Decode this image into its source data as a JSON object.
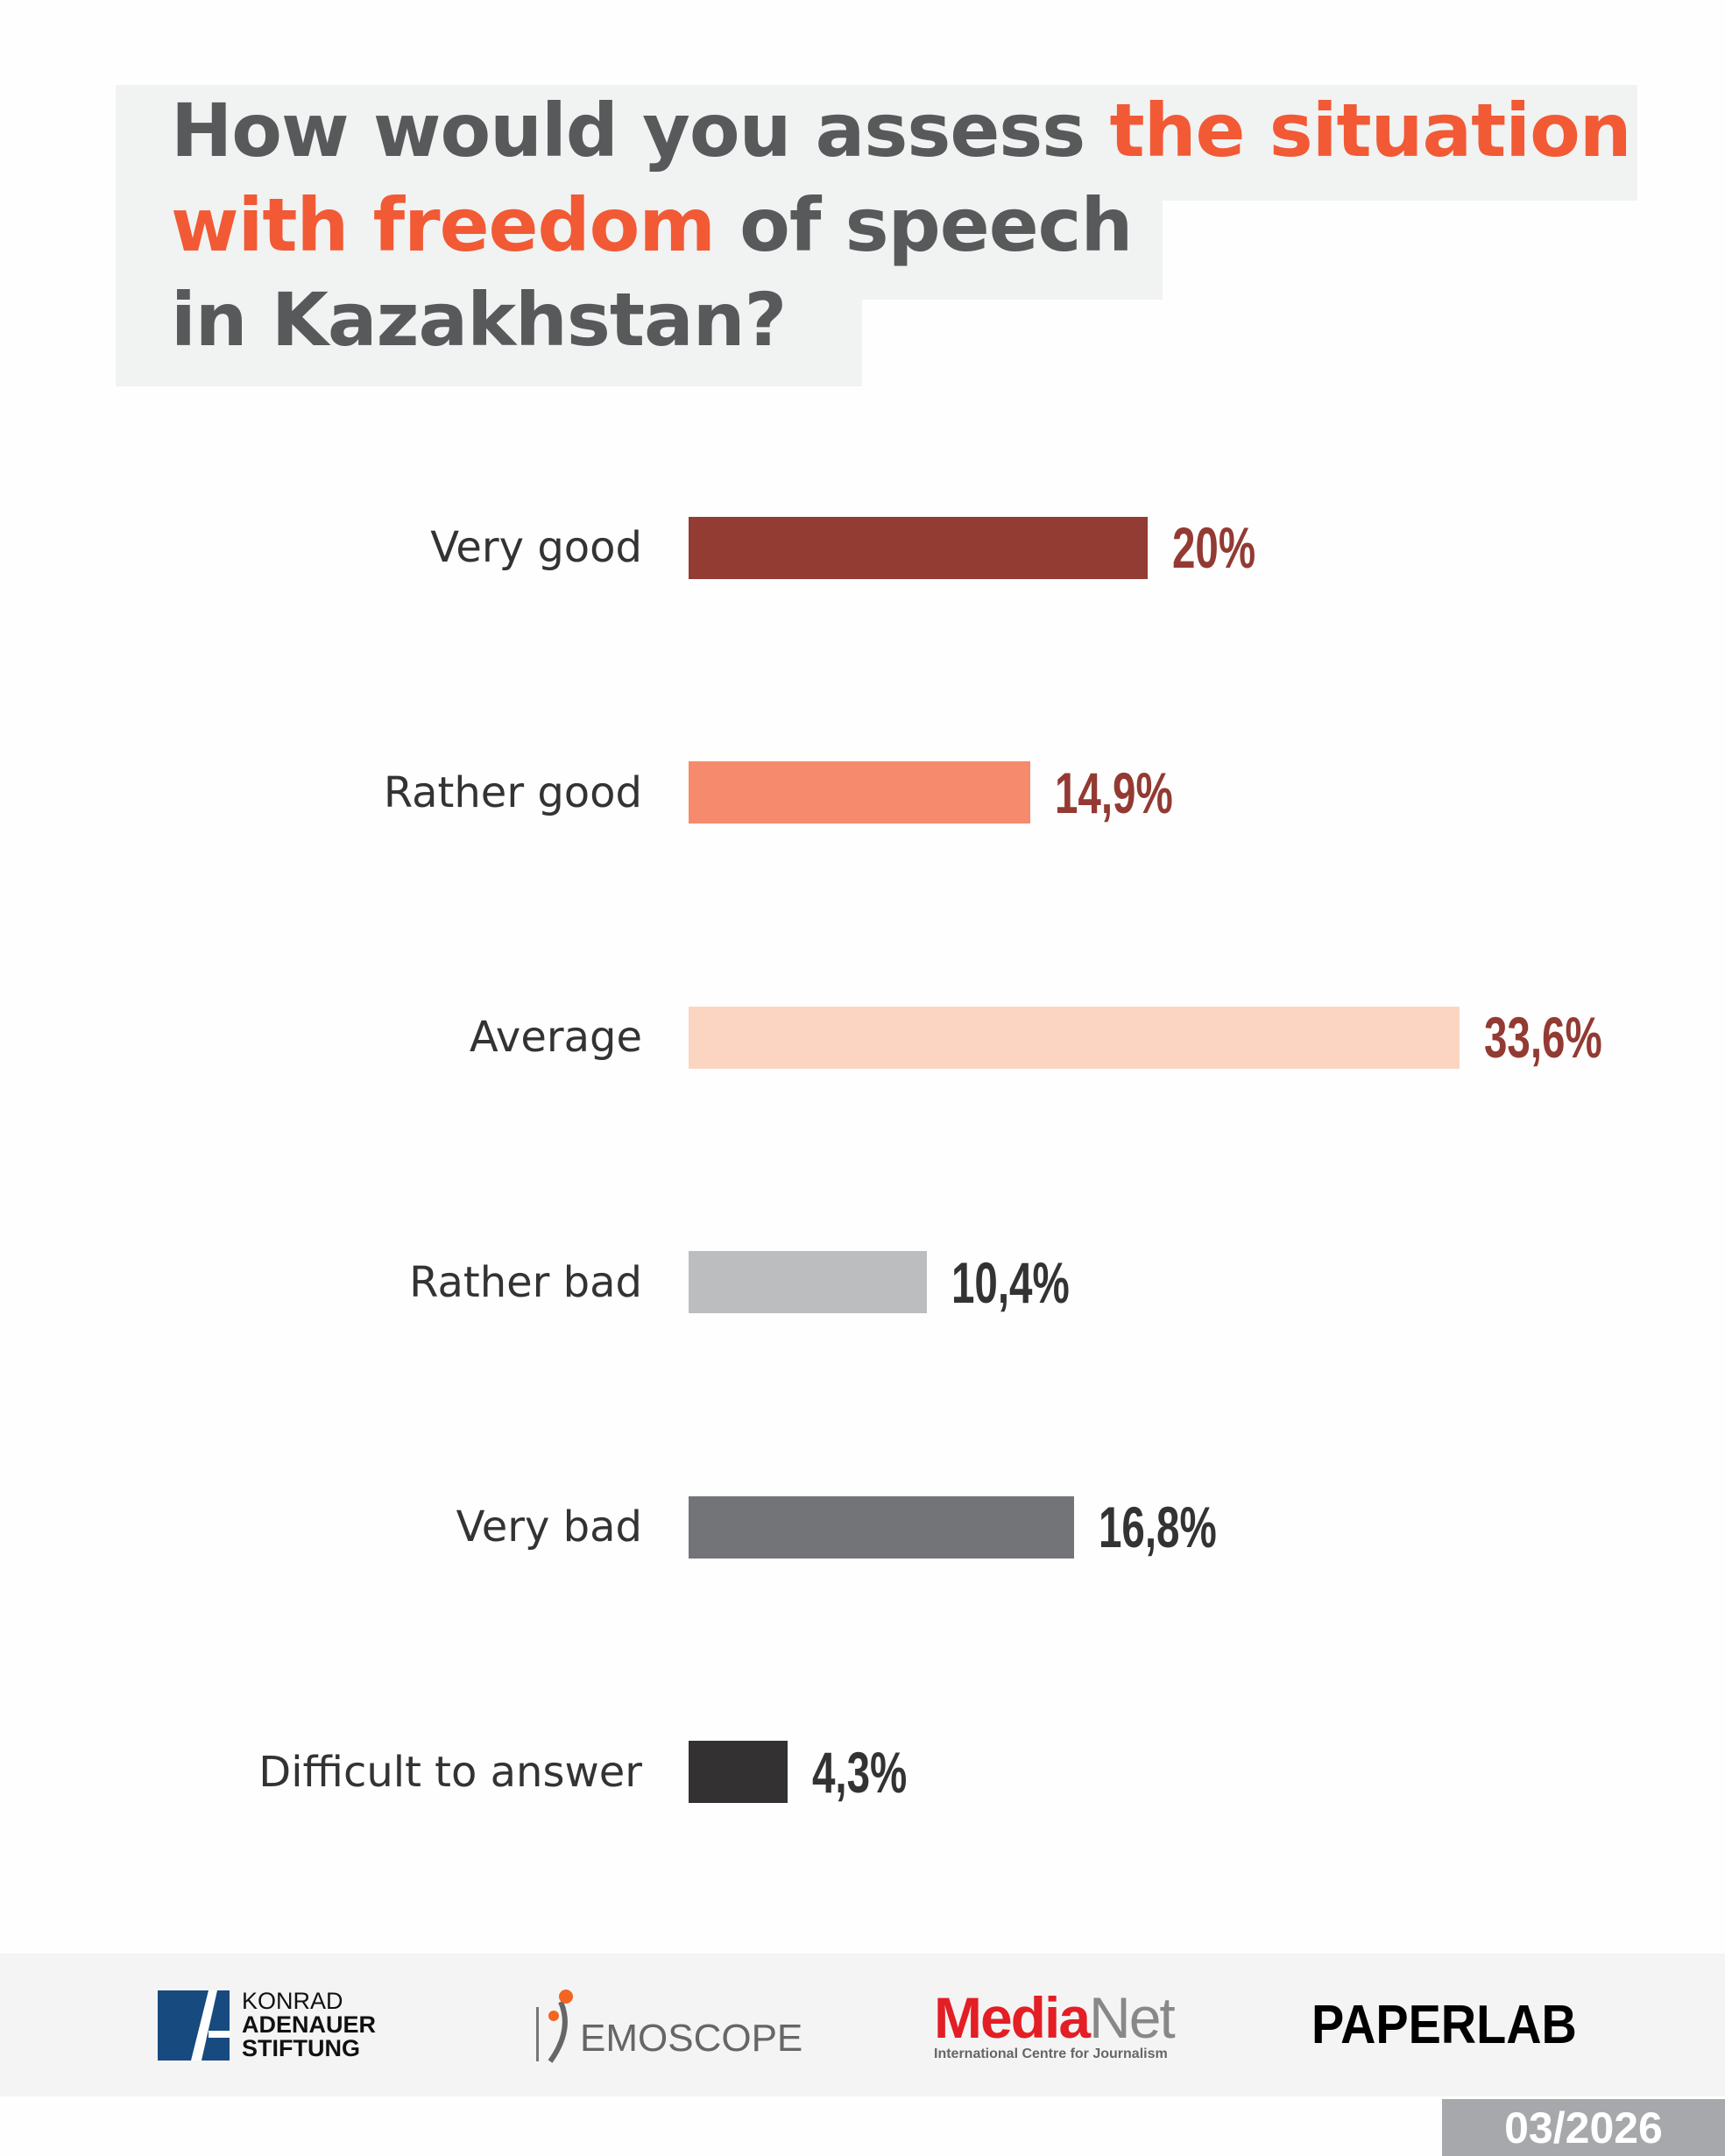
{
  "title": {
    "line1_a": "How would you assess ",
    "line1_b": "the situation",
    "line2_a": "with freedom",
    "line2_b": " of speech",
    "line3": "in Kazakhstan?"
  },
  "colors": {
    "title_text": "#58595b",
    "title_highlight": "#f15a35",
    "value_dark_red": "#933a33",
    "value_dark": "#333333"
  },
  "chart_data": {
    "type": "bar",
    "orientation": "horizontal",
    "categories": [
      "Very good",
      "Rather good",
      "Average",
      "Rather bad",
      "Very bad",
      "Difficult to answer"
    ],
    "values": [
      20,
      14.9,
      33.6,
      10.4,
      16.8,
      4.3
    ],
    "value_labels": [
      "20%",
      "14,9%",
      "33,6%",
      "10,4%",
      "16,8%",
      "4,3%"
    ],
    "bar_colors": [
      "#933c33",
      "#f58a6c",
      "#fcd5c2",
      "#bcbdbf",
      "#737477",
      "#333132"
    ],
    "label_colors": [
      "#933a33",
      "#933a33",
      "#933a33",
      "#333333",
      "#333333",
      "#333333"
    ],
    "unit": "%",
    "grid": false
  },
  "footer": {
    "kas": {
      "line1": "KONRAD",
      "line2": "ADENAUER",
      "line3": "STIFTUNG"
    },
    "demoscope": "EMOSCOPE",
    "medianet": {
      "media": "Media",
      "net": "Net",
      "sub": "International Centre for Journalism"
    },
    "paperlab": "PAPERLAB",
    "date": "03/2026"
  }
}
